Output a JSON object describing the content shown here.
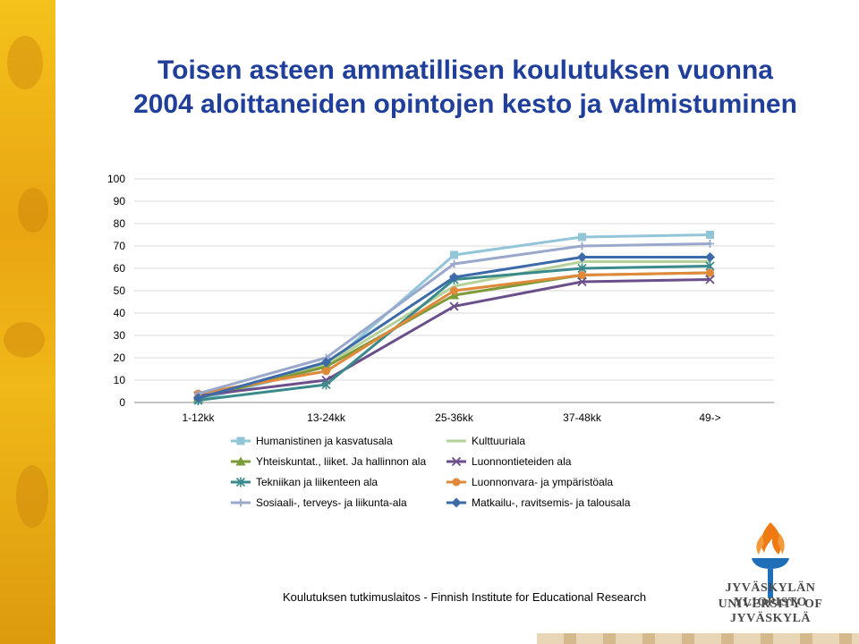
{
  "slide": {
    "title_line1": "Toisen asteen ammatillisen koulutuksen vuonna",
    "title_line2": "2004 aloittaneiden opintojen kesto ja valmistuminen",
    "footer": "Koulutuksen tutkimuslaitos - Finnish Institute for Educational Research",
    "university_fi": "JYVÄSKYLÄN YLIOPISTO",
    "university_en": "UNIVERSITY OF JYVÄSKYLÄ",
    "logo_icon": "flame-torch-icon",
    "colors": {
      "title": "#1f3f9a",
      "strip": "#f0b818",
      "logo_flame": "#f07a12",
      "logo_torch": "#1f6fb8"
    }
  },
  "chart_data": {
    "type": "line",
    "title": "",
    "xlabel": "",
    "ylabel": "",
    "categories": [
      "1-12kk",
      "13-24kk",
      "25-36kk",
      "37-48kk",
      "49->"
    ],
    "ylim": [
      0,
      100
    ],
    "yticks": [
      0,
      10,
      20,
      30,
      40,
      50,
      60,
      70,
      80,
      90,
      100
    ],
    "grid": true,
    "legend_position": "bottom",
    "series": [
      {
        "name": "Humanistinen ja kasvatusala",
        "values": [
          1,
          16,
          66,
          74,
          75
        ],
        "color": "#93c5d9",
        "marker": "square"
      },
      {
        "name": "Kulttuuriala",
        "values": [
          2,
          17,
          52,
          63,
          63
        ],
        "color": "#b4d29a",
        "marker": "none"
      },
      {
        "name": "Yhteiskuntat., liiket. Ja hallinnon ala",
        "values": [
          2,
          16,
          48,
          57,
          58
        ],
        "color": "#7e9b3a",
        "marker": "triangle"
      },
      {
        "name": "Luonnontieteiden ala",
        "values": [
          3,
          10,
          43,
          54,
          55
        ],
        "color": "#6b4f8a",
        "marker": "x"
      },
      {
        "name": "Tekniikan ja liikenteen ala",
        "values": [
          1,
          8,
          55,
          60,
          61
        ],
        "color": "#3a8a8c",
        "marker": "star"
      },
      {
        "name": "Luonnonvara- ja ympäristöala",
        "values": [
          4,
          14,
          50,
          57,
          58
        ],
        "color": "#e0893a",
        "marker": "circle"
      },
      {
        "name": "Sosiaali-, terveys- ja liikunta-ala",
        "values": [
          4,
          20,
          62,
          70,
          71
        ],
        "color": "#9aa8cc",
        "marker": "plus"
      },
      {
        "name": "Matkailu-, ravitsemis- ja talousala",
        "values": [
          2,
          18,
          56,
          65,
          65
        ],
        "color": "#3d6aa8",
        "marker": "diamond"
      }
    ]
  }
}
